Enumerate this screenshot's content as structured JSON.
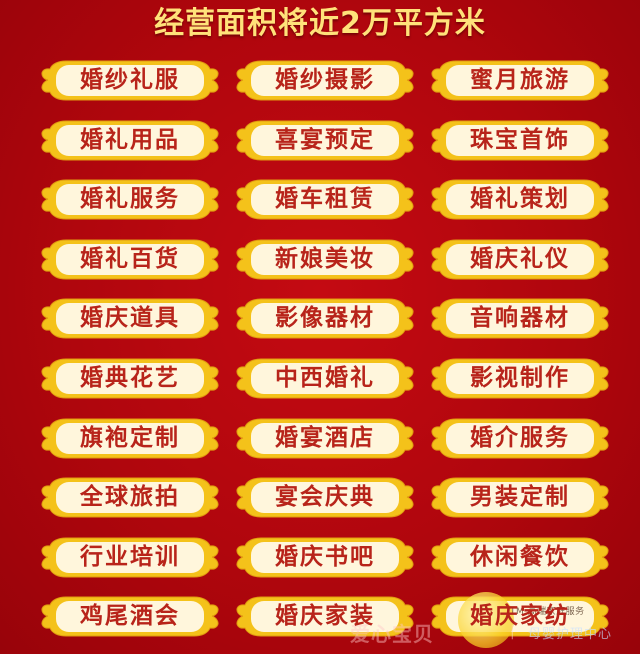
{
  "title": "经营面积将近2万平方米",
  "colors": {
    "background": "#b0060d",
    "title_text": "#ffe27a",
    "badge_frame": "#f4c21a",
    "badge_fill": "#fff6dc",
    "badge_text": "#b8241a"
  },
  "services": [
    [
      "婚纱礼服",
      "婚纱摄影",
      "蜜月旅游"
    ],
    [
      "婚礼用品",
      "喜宴预定",
      "珠宝首饰"
    ],
    [
      "婚礼服务",
      "婚车租赁",
      "婚礼策划"
    ],
    [
      "婚礼百货",
      "新娘美妆",
      "婚庆礼仪"
    ],
    [
      "婚庆道具",
      "影像器材",
      "音响器材"
    ],
    [
      "婚典花艺",
      "中西婚礼",
      "影视制作"
    ],
    [
      "旗袍定制",
      "婚宴酒店",
      "婚介服务"
    ],
    [
      "全球旅拍",
      "宴会庆典",
      "男装定制"
    ],
    [
      "行业培训",
      "婚庆书吧",
      "休闲餐饮"
    ],
    [
      "鸡尾酒会",
      "婚庆家装",
      "婚庆家纺"
    ]
  ],
  "watermark": {
    "brand": "爱心宝贝",
    "tm_line": "TM 高端家庭服务",
    "separator": "|",
    "subtitle": "母婴护理中心"
  }
}
